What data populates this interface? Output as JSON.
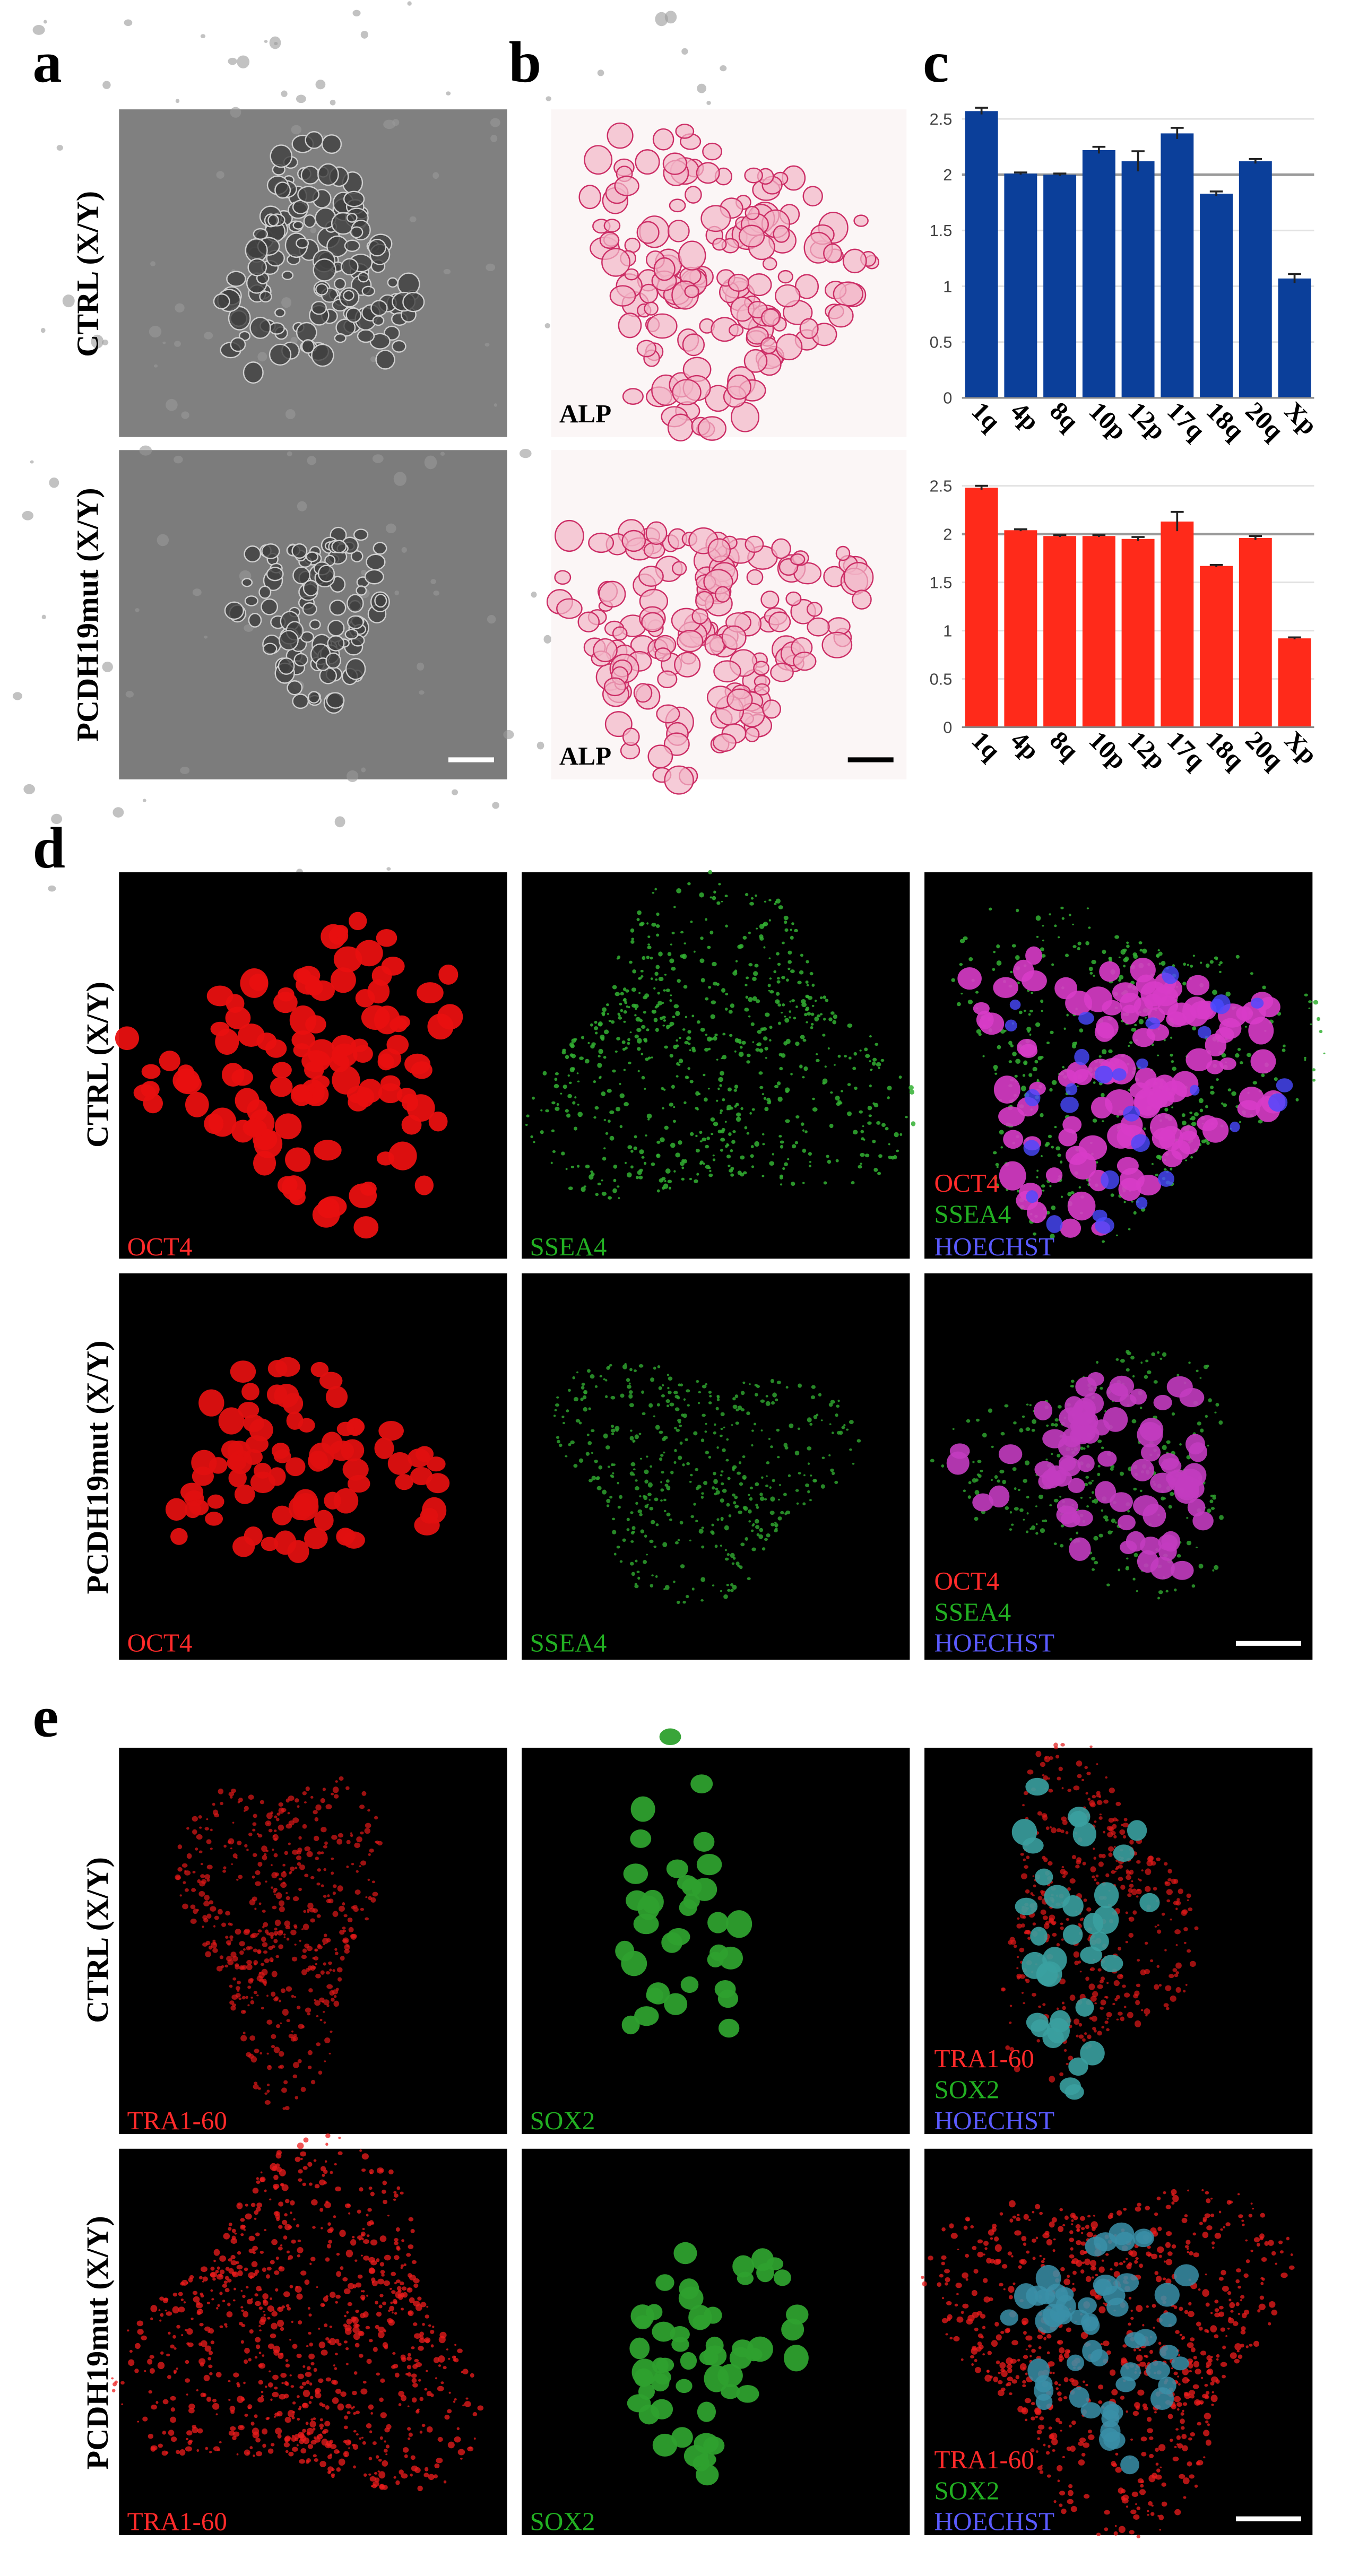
{
  "panel_labels": [
    "a",
    "b",
    "c",
    "d",
    "e"
  ],
  "row_labels": {
    "ab": [
      "CTRL (X/Y)",
      "PCDH19mut (X/Y)"
    ],
    "d": [
      "CTRL (X/Y)",
      "PCDH19mut (X/Y)"
    ],
    "e": [
      "CTRL (X/Y)",
      "PCDH19mut (X/Y)"
    ]
  },
  "panel_b": {
    "labels": [
      "ALP",
      "ALP"
    ]
  },
  "panel_d": {
    "rows": [
      {
        "first": "OCT4",
        "second": "SSEA4",
        "merge": [
          "OCT4",
          "SSEA4",
          "HOECHST"
        ]
      },
      {
        "first": "OCT4",
        "second": "SSEA4",
        "merge": [
          "OCT4",
          "SSEA4",
          "HOECHST"
        ]
      }
    ]
  },
  "panel_e": {
    "rows": [
      {
        "first": "TRA1-60",
        "second": "SOX2",
        "merge": [
          "TRA1-60",
          "SOX2",
          "HOECHST"
        ]
      },
      {
        "first": "TRA1-60",
        "second": "SOX2",
        "merge": [
          "TRA1-60",
          "SOX2",
          "HOECHST"
        ]
      }
    ]
  },
  "chart_data": [
    {
      "type": "bar",
      "categories": [
        "1q",
        "4p",
        "8q",
        "10p",
        "12p",
        "17q",
        "18q",
        "20q",
        "Xp"
      ],
      "values": [
        2.57,
        2.01,
        2.0,
        2.22,
        2.12,
        2.37,
        1.83,
        2.12,
        1.07
      ],
      "errors": [
        0.03,
        0.01,
        0.01,
        0.03,
        0.09,
        0.05,
        0.02,
        0.02,
        0.04
      ],
      "color": "#0b3f9a",
      "ylim": [
        0,
        2.6
      ],
      "yticks": [
        0,
        0.5,
        1,
        1.5,
        2,
        2.5
      ],
      "grid": true,
      "reference_line": 2
    },
    {
      "type": "bar",
      "categories": [
        "1q",
        "4p",
        "8q",
        "10p",
        "12p",
        "17q",
        "18q",
        "20q",
        "Xp"
      ],
      "values": [
        2.48,
        2.04,
        1.98,
        1.98,
        1.95,
        2.13,
        1.67,
        1.96,
        0.92
      ],
      "errors": [
        0.02,
        0.01,
        0.01,
        0.01,
        0.02,
        0.1,
        0.01,
        0.02,
        0.01
      ],
      "color": "#ff2a1a",
      "ylim": [
        0,
        2.6
      ],
      "yticks": [
        0,
        0.5,
        1,
        1.5,
        2,
        2.5
      ],
      "grid": true,
      "reference_line": 2
    }
  ]
}
